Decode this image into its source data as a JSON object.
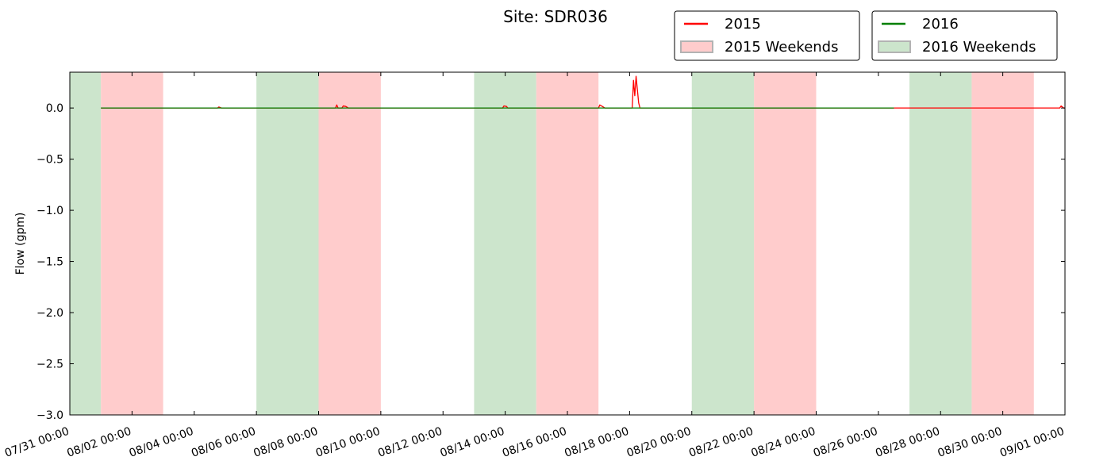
{
  "chart_data": {
    "type": "line",
    "title": "Site: SDR036",
    "ylabel": "Flow (gpm)",
    "xlabel": "",
    "xlim": [
      "2015-07-31 00:00",
      "2015-09-01 00:00"
    ],
    "ylim": [
      -3.0,
      0.35
    ],
    "y_ticks": [
      0.0,
      -0.5,
      -1.0,
      -1.5,
      -2.0,
      -2.5,
      -3.0
    ],
    "y_tick_labels": [
      "0.0",
      "−0.5",
      "−1.0",
      "−1.5",
      "−2.0",
      "−2.5",
      "−3.0"
    ],
    "x_ticks": [
      "2015-07-31 00:00",
      "2015-08-02 00:00",
      "2015-08-04 00:00",
      "2015-08-06 00:00",
      "2015-08-08 00:00",
      "2015-08-10 00:00",
      "2015-08-12 00:00",
      "2015-08-14 00:00",
      "2015-08-16 00:00",
      "2015-08-18 00:00",
      "2015-08-20 00:00",
      "2015-08-22 00:00",
      "2015-08-24 00:00",
      "2015-08-26 00:00",
      "2015-08-28 00:00",
      "2015-08-30 00:00",
      "2015-09-01 00:00"
    ],
    "x_tick_labels": [
      "07/31 00:00",
      "08/02 00:00",
      "08/04 00:00",
      "08/06 00:00",
      "08/08 00:00",
      "08/10 00:00",
      "08/12 00:00",
      "08/14 00:00",
      "08/16 00:00",
      "08/18 00:00",
      "08/20 00:00",
      "08/22 00:00",
      "08/24 00:00",
      "08/26 00:00",
      "08/28 00:00",
      "08/30 00:00",
      "09/01 00:00"
    ],
    "grid": false,
    "legend_placement": "top-right",
    "legends": [
      {
        "entries": [
          {
            "label": "2015",
            "kind": "line",
            "color": "#ff0000"
          },
          {
            "label": "2015 Weekends",
            "kind": "patch",
            "color": "#ffcccc"
          }
        ]
      },
      {
        "entries": [
          {
            "label": "2016",
            "kind": "line",
            "color": "#007f00"
          },
          {
            "label": "2016 Weekends",
            "kind": "patch",
            "color": "#cce5cc"
          }
        ]
      }
    ],
    "shaded_regions": [
      {
        "series": "2016 Weekends",
        "color": "#cce5cc",
        "start": "2015-07-31 00:00",
        "end": "2015-08-01 00:00"
      },
      {
        "series": "2015 Weekends",
        "color": "#ffcccc",
        "start": "2015-08-01 00:00",
        "end": "2015-08-03 00:00"
      },
      {
        "series": "2016 Weekends",
        "color": "#cce5cc",
        "start": "2015-08-06 00:00",
        "end": "2015-08-08 00:00"
      },
      {
        "series": "2015 Weekends",
        "color": "#ffcccc",
        "start": "2015-08-08 00:00",
        "end": "2015-08-10 00:00"
      },
      {
        "series": "2016 Weekends",
        "color": "#cce5cc",
        "start": "2015-08-13 00:00",
        "end": "2015-08-15 00:00"
      },
      {
        "series": "2015 Weekends",
        "color": "#ffcccc",
        "start": "2015-08-15 00:00",
        "end": "2015-08-17 00:00"
      },
      {
        "series": "2016 Weekends",
        "color": "#cce5cc",
        "start": "2015-08-20 00:00",
        "end": "2015-08-22 00:00"
      },
      {
        "series": "2015 Weekends",
        "color": "#ffcccc",
        "start": "2015-08-22 00:00",
        "end": "2015-08-24 00:00"
      },
      {
        "series": "2016 Weekends",
        "color": "#cce5cc",
        "start": "2015-08-27 00:00",
        "end": "2015-08-29 00:00"
      },
      {
        "series": "2015 Weekends",
        "color": "#ffcccc",
        "start": "2015-08-29 00:00",
        "end": "2015-08-31 00:00"
      }
    ],
    "series": [
      {
        "name": "2015",
        "color": "#ff0000",
        "points": [
          [
            "2015-08-01 00:00",
            0.0
          ],
          [
            "2015-08-04 18:00",
            0.0
          ],
          [
            "2015-08-04 19:00",
            0.01
          ],
          [
            "2015-08-04 21:00",
            0.0
          ],
          [
            "2015-08-08 13:00",
            0.0
          ],
          [
            "2015-08-08 14:00",
            0.03
          ],
          [
            "2015-08-08 15:00",
            0.0
          ],
          [
            "2015-08-08 18:00",
            0.0
          ],
          [
            "2015-08-08 19:00",
            0.02
          ],
          [
            "2015-08-08 21:00",
            0.015
          ],
          [
            "2015-08-08 23:00",
            0.0
          ],
          [
            "2015-08-13 22:00",
            0.0
          ],
          [
            "2015-08-13 23:00",
            0.02
          ],
          [
            "2015-08-14 01:00",
            0.015
          ],
          [
            "2015-08-14 02:00",
            0.0
          ],
          [
            "2015-08-17 00:00",
            0.0
          ],
          [
            "2015-08-17 01:00",
            0.03
          ],
          [
            "2015-08-17 03:00",
            0.015
          ],
          [
            "2015-08-17 05:00",
            0.0
          ],
          [
            "2015-08-18 02:00",
            0.0
          ],
          [
            "2015-08-18 03:00",
            0.27
          ],
          [
            "2015-08-18 04:00",
            0.12
          ],
          [
            "2015-08-18 05:00",
            0.31
          ],
          [
            "2015-08-18 07:00",
            0.05
          ],
          [
            "2015-08-18 08:00",
            0.0
          ],
          [
            "2015-08-31 20:00",
            0.0
          ],
          [
            "2015-08-31 21:00",
            0.02
          ],
          [
            "2015-08-31 23:00",
            0.0
          ],
          [
            "2015-09-01 00:00",
            0.0
          ]
        ]
      },
      {
        "name": "2016",
        "color": "#007f00",
        "points": [
          [
            "2015-08-01 00:00",
            0.0
          ],
          [
            "2015-08-26 12:00",
            0.0
          ]
        ]
      }
    ]
  }
}
